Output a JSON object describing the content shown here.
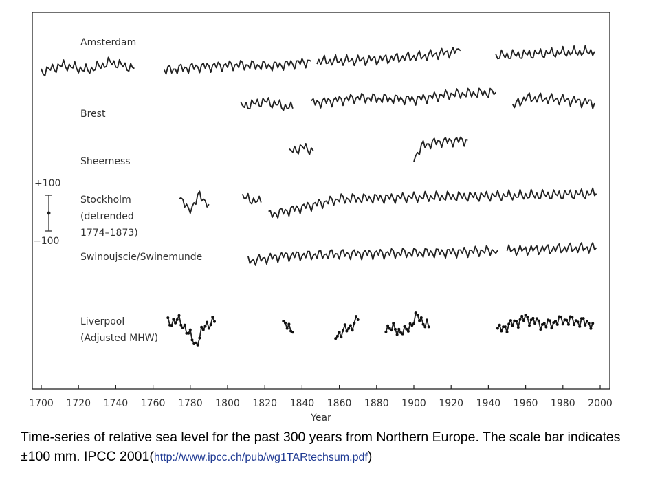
{
  "chart_data": {
    "type": "line",
    "title": "",
    "xlabel": "Year",
    "ylabel": "",
    "xlim": [
      1700,
      2000
    ],
    "x_ticks": [
      1700,
      1720,
      1740,
      1760,
      1780,
      1800,
      1820,
      1840,
      1860,
      1880,
      1900,
      1920,
      1940,
      1960,
      1980,
      2000
    ],
    "scale_bar": {
      "top_label": "+100",
      "bottom_label": "−100",
      "unit": "mm"
    },
    "grid": false,
    "legend": "none",
    "series": [
      {
        "name": "Amsterdam",
        "label_lines": [
          "Amsterdam"
        ],
        "segments": [
          {
            "x": [
              1700,
              1712,
              1725,
              1737,
              1750
            ],
            "y": [
              -30,
              10,
              -20,
              25,
              -10
            ]
          },
          {
            "x": [
              1766,
              1785,
              1805,
              1825,
              1845
            ],
            "y": [
              -20,
              0,
              10,
              5,
              30
            ]
          },
          {
            "x": [
              1848,
              1880,
              1905,
              1925
            ],
            "y": [
              30,
              40,
              60,
              90
            ]
          },
          {
            "x": [
              1944,
              1960,
              1980,
              1997
            ],
            "y": [
              60,
              70,
              80,
              85
            ]
          }
        ]
      },
      {
        "name": "Brest",
        "label_lines": [
          "Brest"
        ],
        "segments": [
          {
            "x": [
              1807,
              1820,
              1835
            ],
            "y": [
              -20,
              10,
              -30
            ]
          },
          {
            "x": [
              1845,
              1870,
              1900,
              1920,
              1944
            ],
            "y": [
              0,
              30,
              20,
              50,
              60
            ]
          },
          {
            "x": [
              1953,
              1960,
              1980,
              1997
            ],
            "y": [
              -20,
              30,
              20,
              0
            ]
          }
        ]
      },
      {
        "name": "Sheerness",
        "label_lines": [
          "Sheerness"
        ],
        "segments": [
          {
            "x": [
              1833,
              1840,
              1846
            ],
            "y": [
              -30,
              0,
              -20
            ]
          },
          {
            "x": [
              1900,
              1905,
              1913,
              1929
            ],
            "y": [
              -60,
              10,
              30,
              40
            ]
          }
        ]
      },
      {
        "name": "Stockholm (detrended 1774–1873)",
        "label_lines": [
          "Stockholm",
          "(detrended",
          "1774–1873)"
        ],
        "segments": [
          {
            "x": [
              1774,
              1779,
              1785,
              1790
            ],
            "y": [
              40,
              -60,
              30,
              -20
            ]
          },
          {
            "x": [
              1808,
              1818
            ],
            "y": [
              20,
              -10
            ]
          },
          {
            "x": [
              1822,
              1860,
              1900,
              1960,
              1998
            ],
            "y": [
              -80,
              10,
              20,
              30,
              40
            ]
          }
        ]
      },
      {
        "name": "Swinoujscie/Swinemunde",
        "label_lines": [
          "Swinoujscie/Swinemunde"
        ],
        "segments": [
          {
            "x": [
              1811,
              1830,
              1860,
              1890,
              1920,
              1945
            ],
            "y": [
              -30,
              0,
              10,
              15,
              20,
              30
            ]
          },
          {
            "x": [
              1950,
              1980,
              1998
            ],
            "y": [
              30,
              40,
              45
            ]
          }
        ]
      },
      {
        "name": "Liverpool (Adjusted MHW)",
        "label_lines": [
          "Liverpool",
          "(Adjusted MHW)"
        ],
        "segments": [
          {
            "x": [
              1768,
              1773,
              1777,
              1783,
              1788,
              1793
            ],
            "y": [
              30,
              50,
              10,
              -90,
              20,
              40
            ]
          },
          {
            "x": [
              1830,
              1833,
              1835
            ],
            "y": [
              20,
              10,
              -20
            ]
          },
          {
            "x": [
              1858,
              1866,
              1870
            ],
            "y": [
              -40,
              10,
              50
            ]
          },
          {
            "x": [
              1885,
              1895,
              1902,
              1908
            ],
            "y": [
              10,
              -20,
              70,
              10
            ]
          },
          {
            "x": [
              1945,
              1960,
              1970,
              1980,
              1996
            ],
            "y": [
              -10,
              60,
              20,
              50,
              30
            ]
          }
        ]
      }
    ]
  },
  "caption": {
    "text": "Time-series of relative sea level for the past 300 years from Northern Europe. The scale bar indicates ±100 mm. IPCC 2001(",
    "link": "http://www.ipcc.ch/pub/wg1TARtechsum.pdf",
    "close": ")"
  }
}
